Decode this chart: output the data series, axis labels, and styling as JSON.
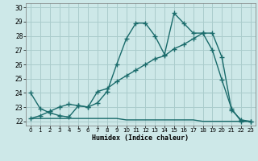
{
  "xlabel": "Humidex (Indice chaleur)",
  "bg_color": "#cde8e8",
  "grid_color": "#aacccc",
  "line_color": "#1a6b6b",
  "xlim": [
    -0.5,
    23.5
  ],
  "ylim": [
    21.7,
    30.3
  ],
  "xticks": [
    0,
    1,
    2,
    3,
    4,
    5,
    6,
    7,
    8,
    9,
    10,
    11,
    12,
    13,
    14,
    15,
    16,
    17,
    18,
    19,
    20,
    21,
    22,
    23
  ],
  "yticks": [
    22,
    23,
    24,
    25,
    26,
    27,
    28,
    29,
    30
  ],
  "line1_x": [
    0,
    1,
    2,
    3,
    4,
    5,
    6,
    7,
    8,
    9,
    10,
    11,
    12,
    13,
    14,
    15,
    16,
    17,
    18,
    19,
    20,
    21,
    22,
    23
  ],
  "line1_y": [
    24.0,
    22.9,
    22.6,
    22.4,
    22.3,
    23.1,
    23.0,
    23.3,
    24.1,
    26.0,
    27.8,
    28.9,
    28.9,
    28.0,
    26.7,
    29.6,
    28.9,
    28.2,
    28.2,
    27.0,
    24.9,
    22.9,
    22.0,
    22.0
  ],
  "line2_x": [
    0,
    1,
    2,
    3,
    4,
    5,
    6,
    7,
    8,
    9,
    10,
    11,
    12,
    13,
    14,
    15,
    16,
    17,
    18,
    19,
    20,
    21,
    22,
    23
  ],
  "line2_y": [
    22.2,
    22.2,
    22.2,
    22.2,
    22.2,
    22.2,
    22.2,
    22.2,
    22.2,
    22.2,
    22.1,
    22.1,
    22.1,
    22.1,
    22.1,
    22.1,
    22.1,
    22.1,
    22.0,
    22.0,
    22.0,
    22.0,
    22.0,
    22.0
  ],
  "line3_x": [
    0,
    1,
    2,
    3,
    4,
    5,
    6,
    7,
    8,
    9,
    10,
    11,
    12,
    13,
    14,
    15,
    16,
    17,
    18,
    19,
    20,
    21,
    22,
    23
  ],
  "line3_y": [
    22.2,
    22.4,
    22.7,
    23.0,
    23.2,
    23.1,
    23.0,
    24.1,
    24.3,
    24.8,
    25.2,
    25.6,
    26.0,
    26.4,
    26.6,
    27.1,
    27.4,
    27.8,
    28.2,
    28.2,
    26.5,
    22.8,
    22.1,
    22.0
  ]
}
